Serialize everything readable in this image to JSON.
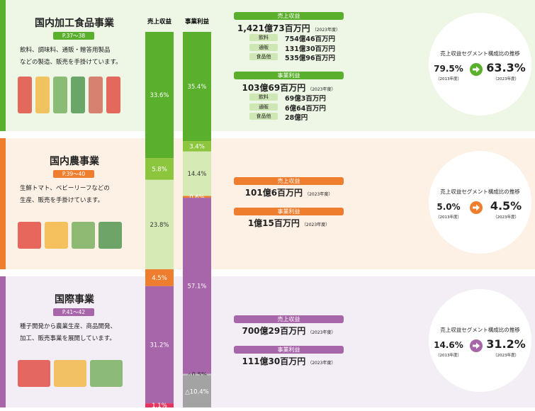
{
  "columns": [
    {
      "name": "売上収益",
      "values": [
        33.6,
        5.8,
        23.8,
        4.5,
        31.2,
        1.1
      ],
      "value_labels": [
        "33.6%",
        "5.8%",
        "23.8%",
        "4.5%",
        "31.2%",
        "1.1%"
      ],
      "colors": [
        "#5aaf2d",
        "#8cc63f",
        "#d5eab5",
        "#ef7d2e",
        "#a765aa",
        "#e4335f"
      ]
    },
    {
      "name": "事業利益",
      "values": [
        35.4,
        3.4,
        14.4,
        0.6,
        57.1,
        -0.5,
        -10.4
      ],
      "value_labels": [
        "35.4%",
        "3.4%",
        "14.4%",
        "0.6%",
        "57.1%",
        "△0.5%",
        "△10.4%"
      ],
      "colors": [
        "#5aaf2d",
        "#8cc63f",
        "#d5eab5",
        "#ef7d2e",
        "#a765aa",
        "#bdbdbd",
        "#a3a3a3"
      ]
    }
  ],
  "segments": [
    {
      "title": "国内加工食品事業",
      "page": "P.37〜38",
      "color": "#5aaf2d",
      "background": "#eef6e6",
      "tag_color": "#cfe6b5",
      "description": [
        "飲料、調味料、通販・贈答用製品",
        "などの製造、販売を手掛けています。"
      ],
      "revenue": {
        "label": "売上収益",
        "amount": "1,421億73百万円",
        "year": "（2023年度）",
        "breakdown": [
          {
            "label": "飲料",
            "amount": "754億46百万円"
          },
          {
            "label": "通販",
            "amount": "131億30百万円"
          },
          {
            "label": "食品他",
            "amount": "535億96百万円"
          }
        ]
      },
      "profit": {
        "label": "事業利益",
        "amount": "103億69百万円",
        "year": "（2023年度）",
        "breakdown": [
          {
            "label": "飲料",
            "amount": "69億3百万円"
          },
          {
            "label": "通販",
            "amount": "6億64百万円"
          },
          {
            "label": "食品他",
            "amount": "28億円"
          }
        ]
      },
      "ratio": {
        "title": "売上収益セグメント構成比の推移",
        "from": "79.5%",
        "from_year": "（2013年度）",
        "to": "63.3%",
        "to_year": "（2023年度）"
      }
    },
    {
      "title": "国内農事業",
      "page": "P.39〜40",
      "color": "#ef7d2e",
      "background": "#fdf0e4",
      "tag_color": "#f8d3b5",
      "description": [
        "生鮮トマト、ベビーリーフなどの",
        "生産、販売を手掛けています。"
      ],
      "revenue": {
        "label": "売上収益",
        "amount": "101億6百万円",
        "year": "（2023年度）",
        "breakdown": []
      },
      "profit": {
        "label": "事業利益",
        "amount": "1億15百万円",
        "year": "（2023年度）",
        "breakdown": []
      },
      "ratio": {
        "title": "売上収益セグメント構成比の推移",
        "from": "5.0%",
        "from_year": "（2013年度）",
        "to": "4.5%",
        "to_year": "（2023年度）"
      }
    },
    {
      "title": "国際事業",
      "page": "P.41〜42",
      "color": "#a765aa",
      "background": "#f3edf5",
      "tag_color": "#e3cfe4",
      "description": [
        "種子開発から農業生産、商品開発、",
        "加工、販売事業を展開しています。"
      ],
      "revenue": {
        "label": "売上収益",
        "amount": "700億29百万円",
        "year": "（2023年度）",
        "breakdown": []
      },
      "profit": {
        "label": "事業利益",
        "amount": "111億30百万円",
        "year": "（2023年度）",
        "breakdown": []
      },
      "ratio": {
        "title": "売上収益セグメント構成比の推移",
        "from": "14.6%",
        "from_year": "（2013年度）",
        "to": "31.2%",
        "to_year": "（2023年度）"
      }
    }
  ]
}
